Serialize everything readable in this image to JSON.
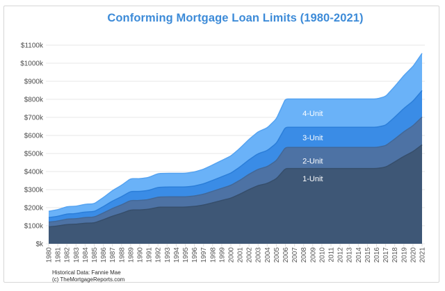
{
  "page": {
    "title": "Conforming Mortgage Loan Limits (1980-2021)",
    "footer": {
      "line1": "Historical Data: Fannie Mae",
      "line2": "(c) TheMortgageReports.com"
    },
    "colors": {
      "title": "#3d8bd8",
      "grid": "#e7e7e7",
      "y_axis_text": "#4b4b4b",
      "x_axis_text": "#555555",
      "tick": "#dddddd",
      "border": "#d6d6d6",
      "series_label_text": "#ffffff"
    }
  },
  "chart_data": {
    "type": "area",
    "stacked": false,
    "title": "Conforming Mortgage Loan Limits (1980-2021)",
    "units": "USD thousands",
    "grid": "horizontal",
    "legend_position": "labels-inside-areas",
    "ylim": [
      0,
      1100
    ],
    "y_tick_labels": [
      "$k",
      "$100k",
      "$200k",
      "$300k",
      "$400k",
      "$500k",
      "$600k",
      "$700k",
      "$800k",
      "$900k",
      "$1000k",
      "$1100k"
    ],
    "x": [
      1980,
      1981,
      1982,
      1983,
      1984,
      1985,
      1986,
      1987,
      1988,
      1989,
      1990,
      1991,
      1992,
      1993,
      1994,
      1995,
      1996,
      1997,
      1998,
      1999,
      2000,
      2001,
      2002,
      2003,
      2004,
      2005,
      2006,
      2007,
      2008,
      2009,
      2010,
      2011,
      2012,
      2013,
      2014,
      2015,
      2016,
      2017,
      2018,
      2019,
      2020,
      2021
    ],
    "series": [
      {
        "name": "4-Unit",
        "fill": "#6ab2f8",
        "stroke": "#55a3f1",
        "label": {
          "year": 2009,
          "value": 723
        },
        "values": [
          180,
          189,
          205.3,
          207.9,
          218.9,
          221.5,
          256,
          294.15,
          324.15,
          360.45,
          360.15,
          367.5,
          388.8,
          390.4,
          390.4,
          390.4,
          397.8,
          412.45,
          436.6,
          461.35,
          485.8,
          528.7,
          578.15,
          620.5,
          641.65,
          691.6,
          801.95,
          801.95,
          801.95,
          801.95,
          801.95,
          801.95,
          801.95,
          801.95,
          801.95,
          801.95,
          801.95,
          815.65,
          871.45,
          931.6,
          981.7,
          1054.5
        ]
      },
      {
        "name": "3-Unit",
        "fill": "#3a8ce6",
        "stroke": "#2b7ed9",
        "label": {
          "year": 2009,
          "value": 588
        },
        "values": [
          145,
          152,
          165.1,
          167.2,
          176.1,
          178.2,
          205.95,
          236.65,
          260.8,
          290,
          289.75,
          295.65,
          312.8,
          314.1,
          314.1,
          314.1,
          320.05,
          331.85,
          351.3,
          371.2,
          390.9,
          425.4,
          465.2,
          499.3,
          516.3,
          556.5,
          645.3,
          645.3,
          645.3,
          645.3,
          645.3,
          645.3,
          645.3,
          645.3,
          645.3,
          645.3,
          645.3,
          656.35,
          701.25,
          749.65,
          789.95,
          848.5
        ]
      },
      {
        "name": "2-Unit",
        "fill": "#4d72a4",
        "stroke": "#436897",
        "label": {
          "year": 2009,
          "value": 460
        },
        "values": [
          120,
          126,
          136.8,
          138.5,
          145.8,
          147.5,
          170.45,
          195.85,
          215.8,
          239.95,
          239.75,
          244.65,
          258.8,
          259.85,
          259.85,
          259.85,
          264.75,
          274.55,
          290.65,
          307.1,
          323.4,
          351.95,
          384.9,
          413.1,
          427.15,
          460.4,
          533.85,
          533.85,
          533.85,
          533.85,
          533.85,
          533.85,
          533.85,
          533.85,
          533.85,
          533.85,
          533.85,
          543,
          580.15,
          620.2,
          653.55,
          702
        ]
      },
      {
        "name": "1-Unit",
        "fill": "#3e5776",
        "stroke": "#364e6b",
        "label": {
          "year": 2009,
          "value": 361
        },
        "values": [
          93.75,
          98.5,
          107,
          108.3,
          114,
          115.3,
          133.25,
          153.1,
          168.7,
          187.6,
          187.45,
          191.25,
          202.3,
          203.15,
          203.15,
          203.15,
          207,
          214.6,
          227.15,
          240,
          252.7,
          275,
          300.7,
          322.7,
          333.7,
          359.65,
          417,
          417,
          417,
          417,
          417,
          417,
          417,
          417,
          417,
          417,
          417,
          424.1,
          453.1,
          484.35,
          510.4,
          548.25
        ]
      }
    ],
    "source_note": "Historical Data: Fannie Mae",
    "copyright": "(c) TheMortgageReports.com"
  }
}
